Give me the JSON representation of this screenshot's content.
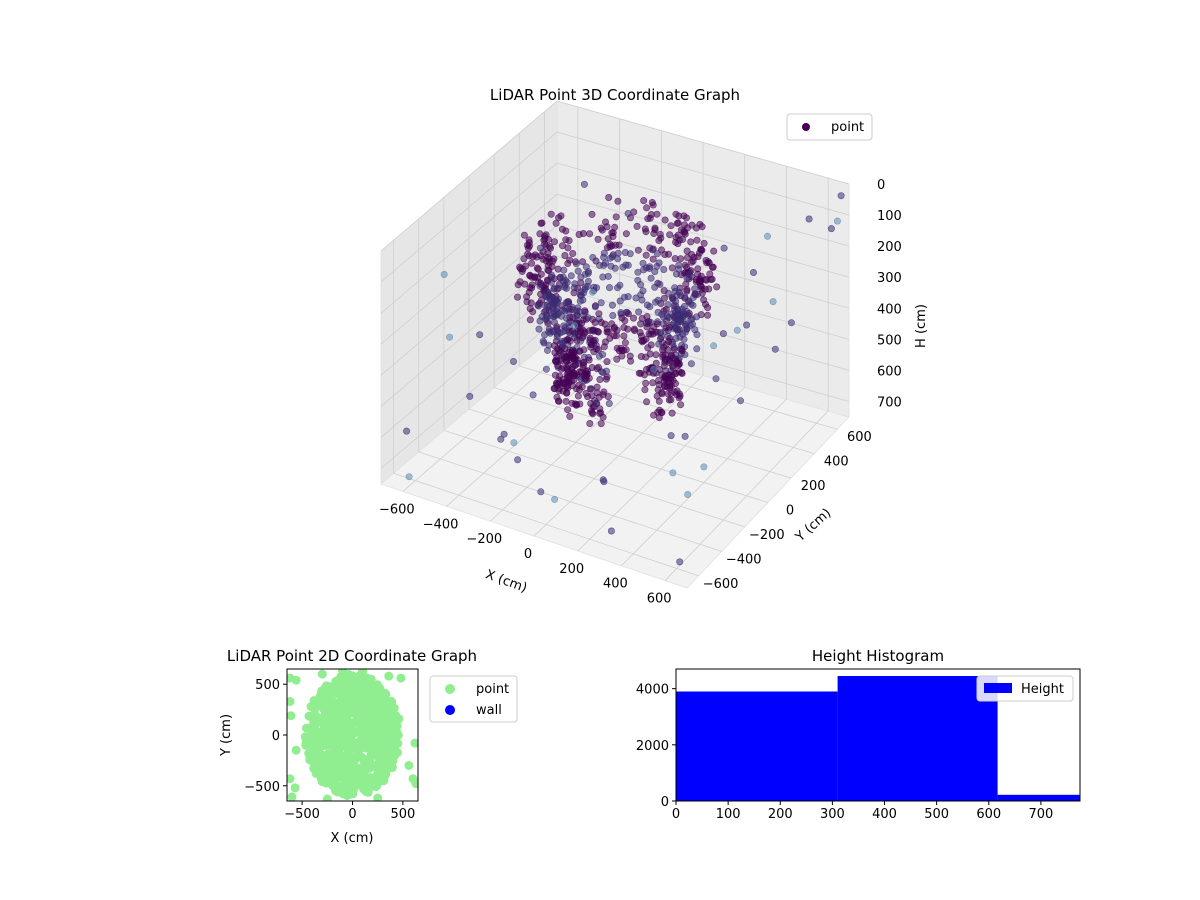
{
  "colors": {
    "point3d_dark": "#440154",
    "point3d_mid": "#3b2b73",
    "point3d_light": "#5b8ab0",
    "point2d": "#90ee90",
    "wall": "#0000ff",
    "hist": "#0000ff",
    "pane": "#f2f2f2",
    "grid": "#cfcfcf"
  },
  "chart_data": [
    {
      "type": "scatter",
      "projection": "3d",
      "title": "LiDAR Point 3D Coordinate Graph",
      "xlabel": "X (cm)",
      "ylabel": "Y (cm)",
      "zlabel": "H (cm)",
      "xlim": [
        -700,
        700
      ],
      "ylim": [
        -700,
        700
      ],
      "zlim": [
        0,
        750
      ],
      "z_inverted": true,
      "x_ticks": [
        -600,
        -400,
        -200,
        0,
        200,
        400,
        600
      ],
      "y_ticks": [
        -600,
        -400,
        -200,
        0,
        200,
        400,
        600
      ],
      "z_ticks": [
        0,
        100,
        200,
        300,
        400,
        500,
        600,
        700
      ],
      "legend": {
        "position": "upper-right",
        "entries": [
          "point"
        ]
      },
      "grid": true,
      "series": [
        {
          "name": "point",
          "structures": [
            {
              "kind": "ring",
              "radius": 380,
              "h_range": [
                80,
                250
              ]
            },
            {
              "kind": "ring",
              "radius": 300,
              "h_range": [
                200,
                420
              ]
            },
            {
              "kind": "ring",
              "radius": 240,
              "h_range": [
                400,
                560
              ]
            }
          ],
          "scattered_points": [
            [
              -640,
              -300,
              200
            ],
            [
              -600,
              400,
              350
            ],
            [
              -550,
              100,
              600
            ],
            [
              -500,
              -500,
              300
            ],
            [
              -450,
              500,
              150
            ],
            [
              -420,
              -200,
              700
            ],
            [
              -380,
              300,
              520
            ],
            [
              -350,
              -600,
              420
            ],
            [
              -300,
              600,
              250
            ],
            [
              -260,
              -400,
              620
            ],
            [
              -220,
              200,
              700
            ],
            [
              -180,
              -650,
              500
            ],
            [
              -120,
              500,
              680
            ],
            [
              -80,
              -500,
              700
            ],
            [
              0,
              650,
              600
            ],
            [
              50,
              -620,
              650
            ],
            [
              120,
              600,
              700
            ],
            [
              180,
              -450,
              620
            ],
            [
              250,
              550,
              500
            ],
            [
              300,
              -600,
              700
            ],
            [
              350,
              400,
              650
            ],
            [
              420,
              -300,
              600
            ],
            [
              480,
              600,
              450
            ],
            [
              520,
              -500,
              380
            ],
            [
              560,
              300,
              250
            ],
            [
              600,
              -200,
              150
            ],
            [
              620,
              500,
              50
            ],
            [
              650,
              -600,
              500
            ],
            [
              680,
              100,
              300
            ],
            [
              690,
              650,
              20
            ],
            [
              700,
              600,
              80
            ],
            [
              660,
              620,
              120
            ],
            [
              -640,
              -600,
              600
            ],
            [
              -500,
              650,
              560
            ],
            [
              -300,
              -300,
              720
            ],
            [
              200,
              200,
              720
            ],
            [
              400,
              0,
              700
            ],
            [
              -100,
              100,
              640
            ],
            [
              550,
              150,
              100
            ],
            [
              450,
              450,
              120
            ],
            [
              300,
              350,
              150
            ],
            [
              600,
              0,
              200
            ],
            [
              500,
              -100,
              250
            ],
            [
              -650,
              0,
              500
            ],
            [
              640,
              -650,
              700
            ],
            [
              -600,
              -650,
              720
            ],
            [
              100,
              -300,
              700
            ],
            [
              -400,
              0,
              640
            ]
          ]
        }
      ]
    },
    {
      "type": "scatter",
      "title": "LiDAR Point 2D Coordinate Graph",
      "xlabel": "X (cm)",
      "ylabel": "Y (cm)",
      "xlim": [
        -650,
        650
      ],
      "ylim": [
        -650,
        650
      ],
      "x_ticks": [
        -500,
        0,
        500
      ],
      "y_ticks": [
        -500,
        0,
        500
      ],
      "legend": {
        "position": "outside-right",
        "entries": [
          "point",
          "wall"
        ]
      },
      "series": [
        {
          "name": "point",
          "cluster": {
            "center": [
              0,
              0
            ],
            "rx": 470,
            "ry": 600
          },
          "outliers": [
            [
              -620,
              560
            ],
            [
              -560,
              540
            ],
            [
              -620,
              330
            ],
            [
              -610,
              190
            ],
            [
              -560,
              -150
            ],
            [
              -620,
              -430
            ],
            [
              -570,
              -520
            ],
            [
              -600,
              -610
            ],
            [
              480,
              560
            ],
            [
              360,
              580
            ],
            [
              460,
              160
            ],
            [
              620,
              -80
            ],
            [
              600,
              -430
            ],
            [
              630,
              -480
            ],
            [
              560,
              -300
            ],
            [
              -100,
              640
            ],
            [
              100,
              630
            ],
            [
              -300,
              600
            ],
            [
              250,
              -620
            ],
            [
              -250,
              -630
            ]
          ]
        },
        {
          "name": "wall",
          "points": []
        }
      ]
    },
    {
      "type": "histogram",
      "title": "Height Histogram",
      "xlabel": "",
      "ylabel": "",
      "xlim": [
        0,
        775
      ],
      "ylim": [
        0,
        4700
      ],
      "x_ticks": [
        0,
        100,
        200,
        300,
        400,
        500,
        600,
        700
      ],
      "y_ticks": [
        0,
        2000,
        4000
      ],
      "legend": {
        "position": "upper-right",
        "entries": [
          "Height"
        ]
      },
      "bins": [
        {
          "start": 0,
          "end": 310,
          "count": 3900
        },
        {
          "start": 310,
          "end": 617,
          "count": 4450
        },
        {
          "start": 617,
          "end": 775,
          "count": 220
        }
      ],
      "series": [
        {
          "name": "Height"
        }
      ]
    }
  ]
}
